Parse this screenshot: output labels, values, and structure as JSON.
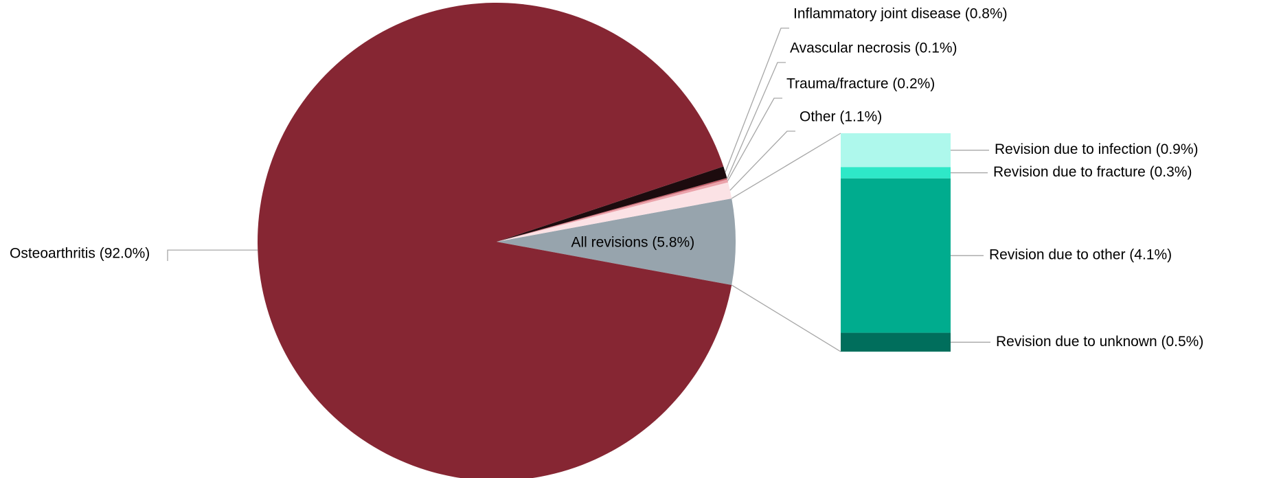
{
  "chart_data": {
    "type": "pie",
    "categories": [
      "All revisions (5.8%)",
      "Other (1.1%)",
      "Trauma/fracture (0.2%)",
      "Avascular necrosis (0.1%)",
      "Inflammatory joint disease (0.8%)",
      "Osteoarthritis (92.0%)"
    ],
    "values": [
      5.8,
      1.1,
      0.2,
      0.1,
      0.8,
      92.0
    ],
    "colors": [
      "#97a4ad",
      "#fbe2e5",
      "#eba3ab",
      "#c5606b",
      "#1c0b0e",
      "#862633"
    ],
    "breakdown": {
      "categories": [
        "Revision due to infection (0.9%)",
        "Revision due to fracture (0.3%)",
        "Revision due to other (4.1%)",
        "Revision due to unknown (0.5%)"
      ],
      "values": [
        0.9,
        0.3,
        4.1,
        0.5
      ],
      "colors": [
        "#aef8ec",
        "#2ee8c8",
        "#00ac8e",
        "#006e5c"
      ]
    }
  }
}
